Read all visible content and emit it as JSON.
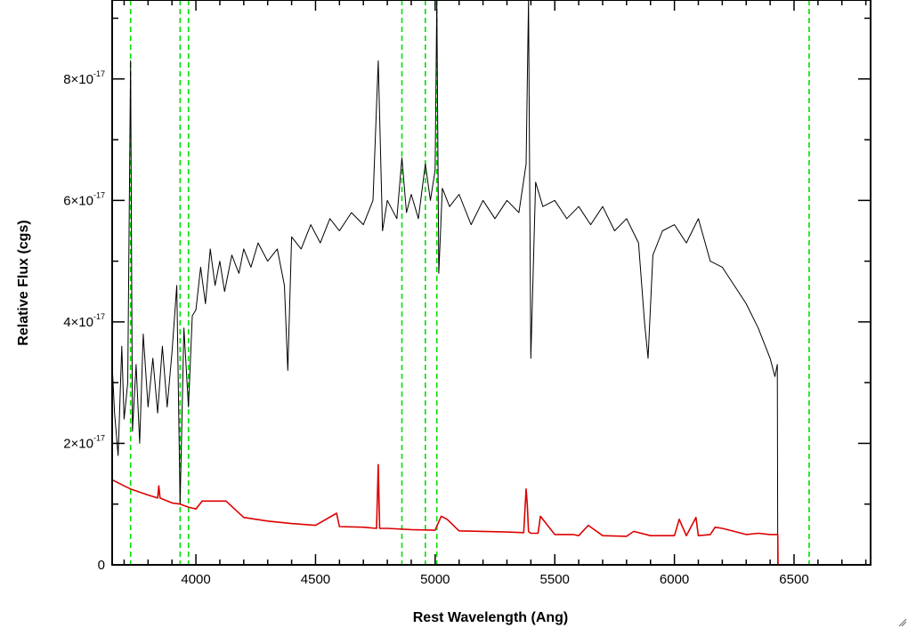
{
  "chart_data": {
    "type": "line",
    "xlabel": "Rest Wavelength (Ang)",
    "ylabel": "Relative Flux (cgs)",
    "xlim": [
      3650,
      6820
    ],
    "ylim": [
      0,
      9.3e-17
    ],
    "x_ticks": [
      {
        "value": 4000,
        "label": "4000"
      },
      {
        "value": 4500,
        "label": "4500"
      },
      {
        "value": 5000,
        "label": "5000"
      },
      {
        "value": 5500,
        "label": "5500"
      },
      {
        "value": 6000,
        "label": "6000"
      },
      {
        "value": 6500,
        "label": "6500"
      }
    ],
    "y_ticks": [
      {
        "value": 0,
        "mantissa": "0",
        "exponent": ""
      },
      {
        "value": 2e-17,
        "mantissa": "2×10",
        "exponent": "-17"
      },
      {
        "value": 4e-17,
        "mantissa": "4×10",
        "exponent": "-17"
      },
      {
        "value": 6e-17,
        "mantissa": "6×10",
        "exponent": "-17"
      },
      {
        "value": 8e-17,
        "mantissa": "8×10",
        "exponent": "-17"
      }
    ],
    "grid": false,
    "reference_lines": {
      "color": "#00e000",
      "style": "dashed",
      "x": [
        3727,
        3934,
        3969,
        4861,
        4959,
        5007,
        6563
      ]
    },
    "series": [
      {
        "color": "#000000",
        "x": [
          3650,
          3660,
          3675,
          3690,
          3700,
          3715,
          3727,
          3735,
          3750,
          3765,
          3780,
          3800,
          3820,
          3840,
          3860,
          3880,
          3900,
          3920,
          3934,
          3950,
          3969,
          3985,
          4000,
          4020,
          4040,
          4060,
          4080,
          4100,
          4120,
          4150,
          4180,
          4200,
          4230,
          4260,
          4300,
          4340,
          4370,
          4384,
          4400,
          4440,
          4480,
          4520,
          4560,
          4600,
          4650,
          4700,
          4740,
          4762,
          4780,
          4800,
          4840,
          4861,
          4880,
          4900,
          4930,
          4959,
          4980,
          5000,
          5007,
          5015,
          5030,
          5060,
          5100,
          5150,
          5200,
          5250,
          5300,
          5350,
          5380,
          5390,
          5400,
          5420,
          5450,
          5500,
          5550,
          5600,
          5650,
          5700,
          5750,
          5800,
          5850,
          5875,
          5890,
          5910,
          5950,
          6000,
          6050,
          6100,
          6150,
          6200,
          6250,
          6300,
          6350,
          6400,
          6420,
          6430,
          6432,
          6440,
          6820
        ],
        "y": [
          3.3e-17,
          2.5e-17,
          1.8e-17,
          3.6e-17,
          2.4e-17,
          3e-17,
          8.3e-17,
          2.2e-17,
          3.3e-17,
          2e-17,
          3.8e-17,
          2.6e-17,
          3.4e-17,
          2.5e-17,
          3.6e-17,
          2.6e-17,
          3.5e-17,
          4.6e-17,
          1e-17,
          3.9e-17,
          2.6e-17,
          4.1e-17,
          4.2e-17,
          4.9e-17,
          4.3e-17,
          5.2e-17,
          4.6e-17,
          5e-17,
          4.5e-17,
          5.1e-17,
          4.8e-17,
          5.2e-17,
          4.9e-17,
          5.3e-17,
          5e-17,
          5.2e-17,
          4.6e-17,
          3.2e-17,
          5.4e-17,
          5.2e-17,
          5.6e-17,
          5.3e-17,
          5.7e-17,
          5.5e-17,
          5.8e-17,
          5.6e-17,
          6e-17,
          8.3e-17,
          5.5e-17,
          6e-17,
          5.7e-17,
          6.7e-17,
          5.8e-17,
          6.1e-17,
          5.7e-17,
          6.6e-17,
          6e-17,
          6.5e-17,
          9.3e-17,
          4.8e-17,
          6.2e-17,
          5.9e-17,
          6.1e-17,
          5.6e-17,
          6e-17,
          5.7e-17,
          6e-17,
          5.8e-17,
          6.6e-17,
          9.3e-17,
          3.4e-17,
          6.3e-17,
          5.9e-17,
          6e-17,
          5.7e-17,
          5.9e-17,
          5.6e-17,
          5.9e-17,
          5.5e-17,
          5.7e-17,
          5.3e-17,
          4e-17,
          3.4e-17,
          5.1e-17,
          5.5e-17,
          5.6e-17,
          5.3e-17,
          5.7e-17,
          5e-17,
          4.9e-17,
          4.6e-17,
          4.3e-17,
          3.9e-17,
          3.4e-17,
          3.1e-17,
          3.3e-17,
          0.0,
          0.0,
          0.0
        ]
      },
      {
        "color": "#dd0000",
        "x": [
          3650,
          3700,
          3727,
          3800,
          3840,
          3845,
          3850,
          3900,
          3934,
          3969,
          4000,
          4026,
          4047,
          4101,
          4126,
          4200,
          4300,
          4400,
          4500,
          4588,
          4600,
          4700,
          4755,
          4762,
          4768,
          4800,
          4900,
          5000,
          5025,
          5050,
          5100,
          5200,
          5300,
          5370,
          5380,
          5385,
          5390,
          5400,
          5430,
          5440,
          5500,
          5577,
          5600,
          5640,
          5700,
          5800,
          5830,
          5900,
          6000,
          6020,
          6050,
          6090,
          6100,
          6150,
          6170,
          6200,
          6250,
          6300,
          6350,
          6400,
          6432,
          6433,
          6820
        ],
        "y": [
          1.4e-17,
          1.3e-17,
          1.25e-17,
          1.15e-17,
          1.1e-17,
          1.3e-17,
          1.1e-17,
          1.02e-17,
          1e-17,
          9.5e-18,
          9.2e-18,
          1.05e-17,
          1.05e-17,
          1.05e-17,
          1.05e-17,
          7.8e-18,
          7.2e-18,
          6.8e-18,
          6.5e-18,
          8.5e-18,
          6.3e-18,
          6.2e-18,
          6e-18,
          1.65e-17,
          6e-18,
          6e-18,
          5.8e-18,
          5.7e-18,
          8e-18,
          7.5e-18,
          5.6e-18,
          5.5e-18,
          5.4e-18,
          5.3e-18,
          1.25e-17,
          1e-17,
          5.5e-18,
          5.2e-18,
          5.2e-18,
          8e-18,
          5e-18,
          5e-18,
          4.8e-18,
          6.5e-18,
          4.8e-18,
          4.7e-18,
          5.5e-18,
          4.8e-18,
          4.8e-18,
          7.5e-18,
          4.8e-18,
          7.8e-18,
          4.8e-18,
          5e-18,
          6.2e-18,
          6e-18,
          5.5e-18,
          5e-18,
          5.2e-18,
          5e-18,
          5e-18,
          0.0,
          0.0
        ]
      }
    ]
  }
}
